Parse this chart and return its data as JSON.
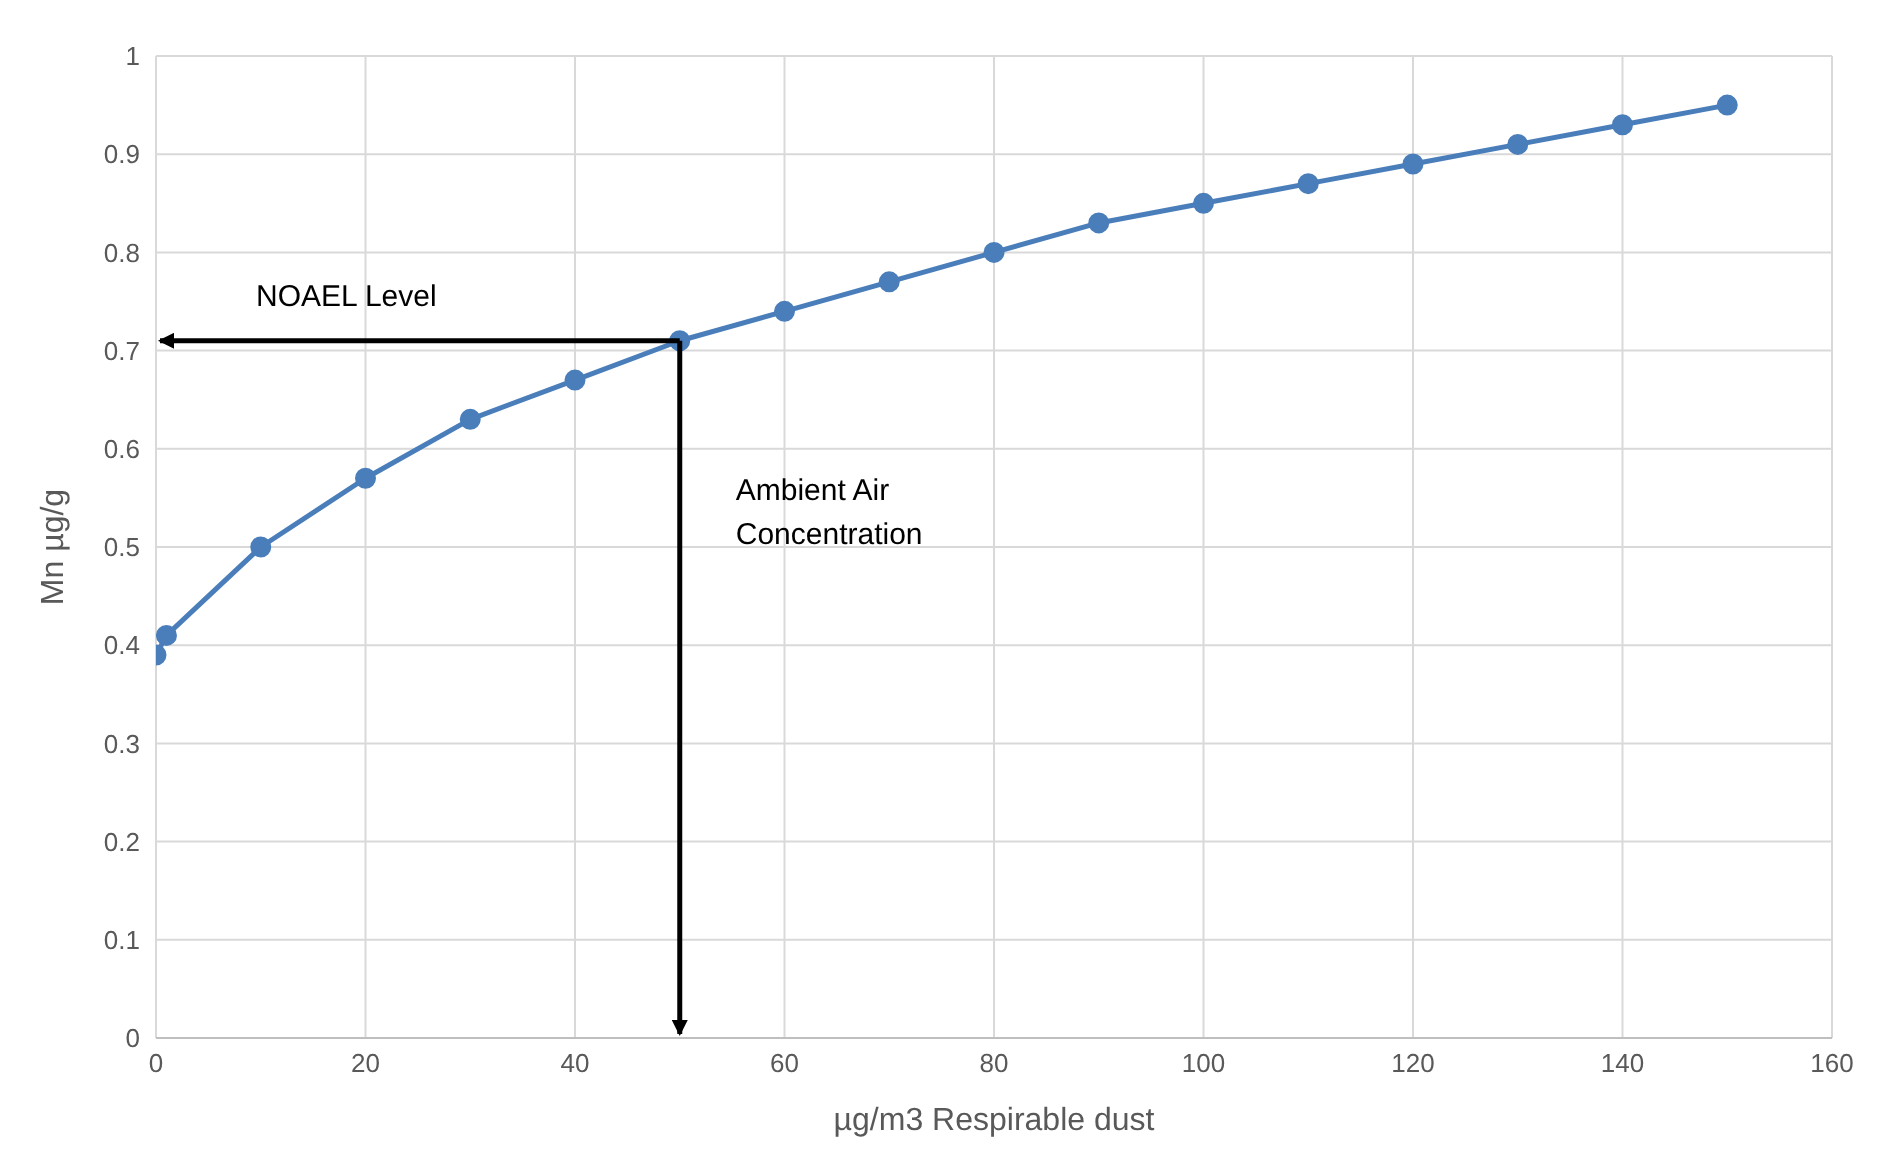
{
  "chart_data": {
    "type": "line",
    "xlabel": "µg/m3 Respirable dust",
    "ylabel": "Mn µg/g",
    "x": [
      0,
      1,
      10,
      20,
      30,
      40,
      50,
      60,
      70,
      80,
      90,
      100,
      110,
      120,
      130,
      140,
      150
    ],
    "series": [
      {
        "color": "#4a7ebb",
        "values": [
          0.39,
          0.41,
          0.5,
          0.57,
          0.63,
          0.67,
          0.71,
          0.74,
          0.77,
          0.8,
          0.83,
          0.85,
          0.87,
          0.89,
          0.91,
          0.93,
          0.95
        ]
      }
    ],
    "xlim": [
      0,
      160
    ],
    "xticks": [
      0,
      20,
      40,
      60,
      80,
      100,
      120,
      140,
      160
    ],
    "ylim": [
      0,
      1
    ],
    "yticks": [
      0,
      0.1,
      0.2,
      0.3,
      0.4,
      0.5,
      0.6,
      0.7,
      0.8,
      0.9,
      1
    ],
    "grid": true,
    "marker": "circle",
    "line_style": "solid",
    "ref_lines": [
      {
        "axis": "y",
        "value": 0.71,
        "label": "NOAEL Level",
        "color": "#000000"
      },
      {
        "axis": "x",
        "value": 50,
        "label": "Ambient Air Concentration",
        "color": "#000000"
      }
    ]
  }
}
